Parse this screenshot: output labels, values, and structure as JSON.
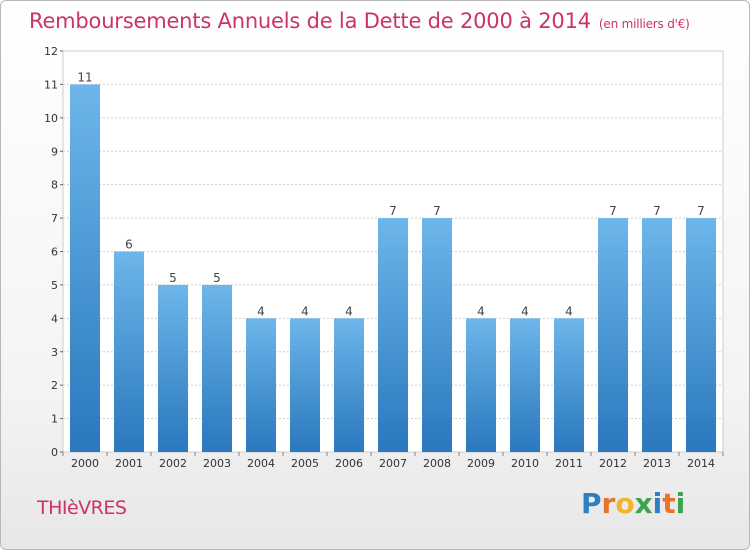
{
  "title": "Remboursements Annuels de la Dette de 2000 à 2014",
  "unit_note": "(en milliers d'€)",
  "commune": "THIèVRES",
  "brand": {
    "text": "Proxiti",
    "letter_colors": [
      "#2e7fc1",
      "#e8742a",
      "#f2b62c",
      "#3aa54b",
      "#2e7fc1",
      "#e8742a",
      "#3aa54b"
    ]
  },
  "colors": {
    "bar_light": "#6cb6ea",
    "bar_dark": "#2a78bd",
    "accent": "#cc3366",
    "grid": "#cfcfcf",
    "axis_text": "#333333"
  },
  "chart_data": {
    "type": "bar",
    "categories": [
      "2000",
      "2001",
      "2002",
      "2003",
      "2004",
      "2005",
      "2006",
      "2007",
      "2008",
      "2009",
      "2010",
      "2011",
      "2012",
      "2013",
      "2014"
    ],
    "values": [
      11,
      6,
      5,
      5,
      4,
      4,
      4,
      7,
      7,
      4,
      4,
      4,
      7,
      7,
      7
    ],
    "data_labels": [
      "11",
      "6",
      "5",
      "5",
      "4",
      "4",
      "4",
      "7",
      "7",
      "4",
      "4",
      "4",
      "7",
      "7",
      "7"
    ],
    "yticks": [
      "0",
      "1",
      "2",
      "3",
      "4",
      "5",
      "6",
      "7",
      "8",
      "9",
      "10",
      "11",
      "12"
    ],
    "ylim": [
      0,
      12
    ],
    "grid": true
  }
}
